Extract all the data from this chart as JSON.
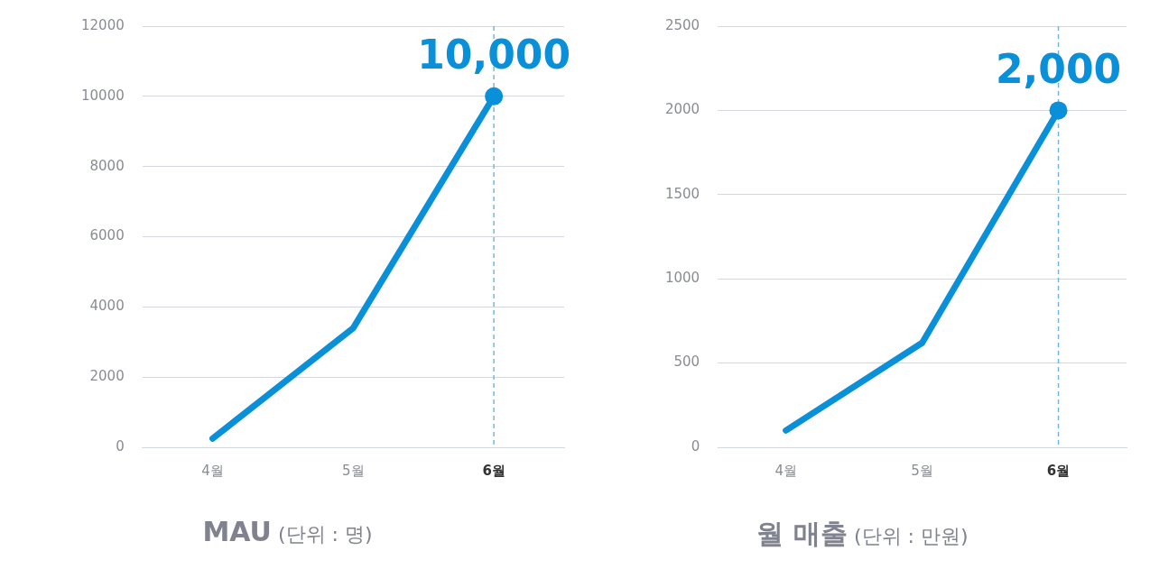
{
  "chart_data": [
    {
      "type": "line",
      "title": "MAU (단위 : 명)",
      "categories": [
        "4월",
        "5월",
        "6월"
      ],
      "series": [
        {
          "color": "#0a8fd9",
          "values": [
            250,
            3400,
            10000
          ]
        }
      ],
      "ylim": [
        0,
        12000
      ],
      "yticks": [
        0,
        2000,
        4000,
        6000,
        8000,
        10000,
        12000
      ],
      "grid": "y",
      "legend": false,
      "marker": "none",
      "line_style": "solid",
      "ref_lines": [
        {
          "axis": "x",
          "value": "6월",
          "color": "#6fb8e3",
          "line_style": "dashed"
        }
      ],
      "annotations": [
        {
          "text": "10,000",
          "x": "6월",
          "y": 10000
        }
      ]
    },
    {
      "type": "line",
      "title": "월 매출 (단위 : 만원)",
      "categories": [
        "4월",
        "5월",
        "6월"
      ],
      "series": [
        {
          "color": "#0a8fd9",
          "values": [
            100,
            620,
            2000
          ]
        }
      ],
      "ylim": [
        0,
        2500
      ],
      "yticks": [
        0,
        500,
        1000,
        1500,
        2000,
        2500
      ],
      "grid": "y",
      "legend": false,
      "marker": "none",
      "line_style": "solid",
      "ref_lines": [
        {
          "axis": "x",
          "value": "6월",
          "color": "#6fb8e3",
          "line_style": "dashed"
        }
      ],
      "annotations": [
        {
          "text": "2,000",
          "x": "6월",
          "y": 2000
        }
      ]
    }
  ]
}
